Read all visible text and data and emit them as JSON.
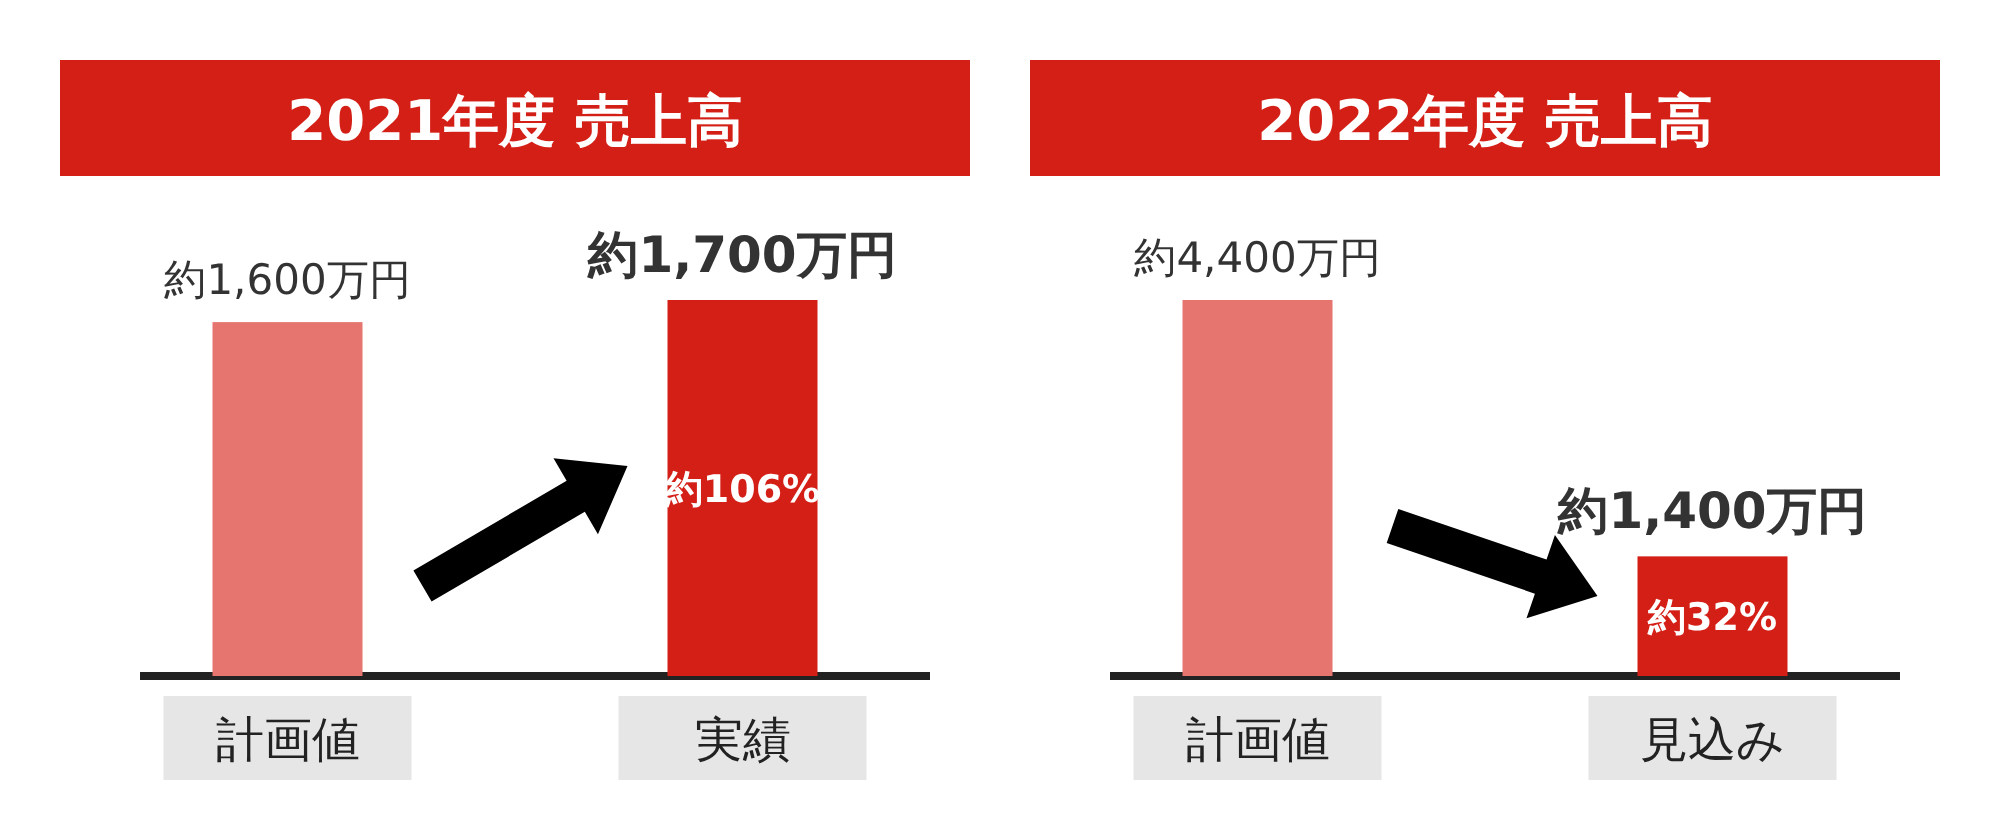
{
  "chart_data": [
    {
      "type": "bar",
      "title": "2021年度 売上高",
      "categories": [
        "計画値",
        "実績"
      ],
      "values": [
        1600,
        1700
      ],
      "colors": [
        "#e5756e",
        "#d41f16"
      ],
      "value_labels": [
        "約1,600万円",
        "約1,700万円"
      ],
      "annotations": [
        "約106%"
      ]
    },
    {
      "type": "bar",
      "title": "2022年度 売上高",
      "categories": [
        "計画値",
        "見込み"
      ],
      "values": [
        4400,
        1400
      ],
      "colors": [
        "#e5756e",
        "#d41f16"
      ],
      "value_labels": [
        "約4,400万円",
        "約1,400万円"
      ],
      "annotations": [
        "約32%"
      ]
    }
  ]
}
